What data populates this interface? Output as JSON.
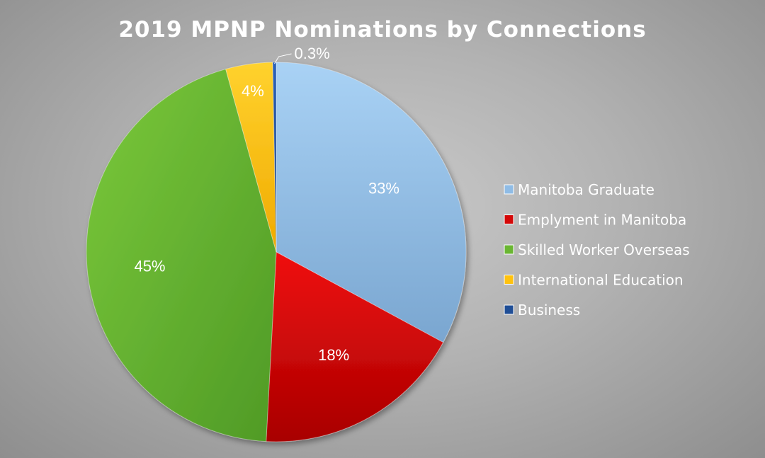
{
  "chart_data": {
    "type": "pie",
    "title": "2019 MPNP Nominations by Connections",
    "categories": [
      "Manitoba Graduate",
      "Emplyment in Manitoba",
      "Skilled Worker Overseas",
      "International Education",
      "Business"
    ],
    "values": [
      33,
      18,
      45,
      4,
      0.3
    ],
    "data_labels": [
      "33%",
      "18%",
      "45%",
      "4%",
      "0.3%"
    ],
    "colors": [
      "#8fbce6",
      "#d40808",
      "#6ab632",
      "#ffc20e",
      "#1f4e96"
    ],
    "legend_position": "right"
  }
}
